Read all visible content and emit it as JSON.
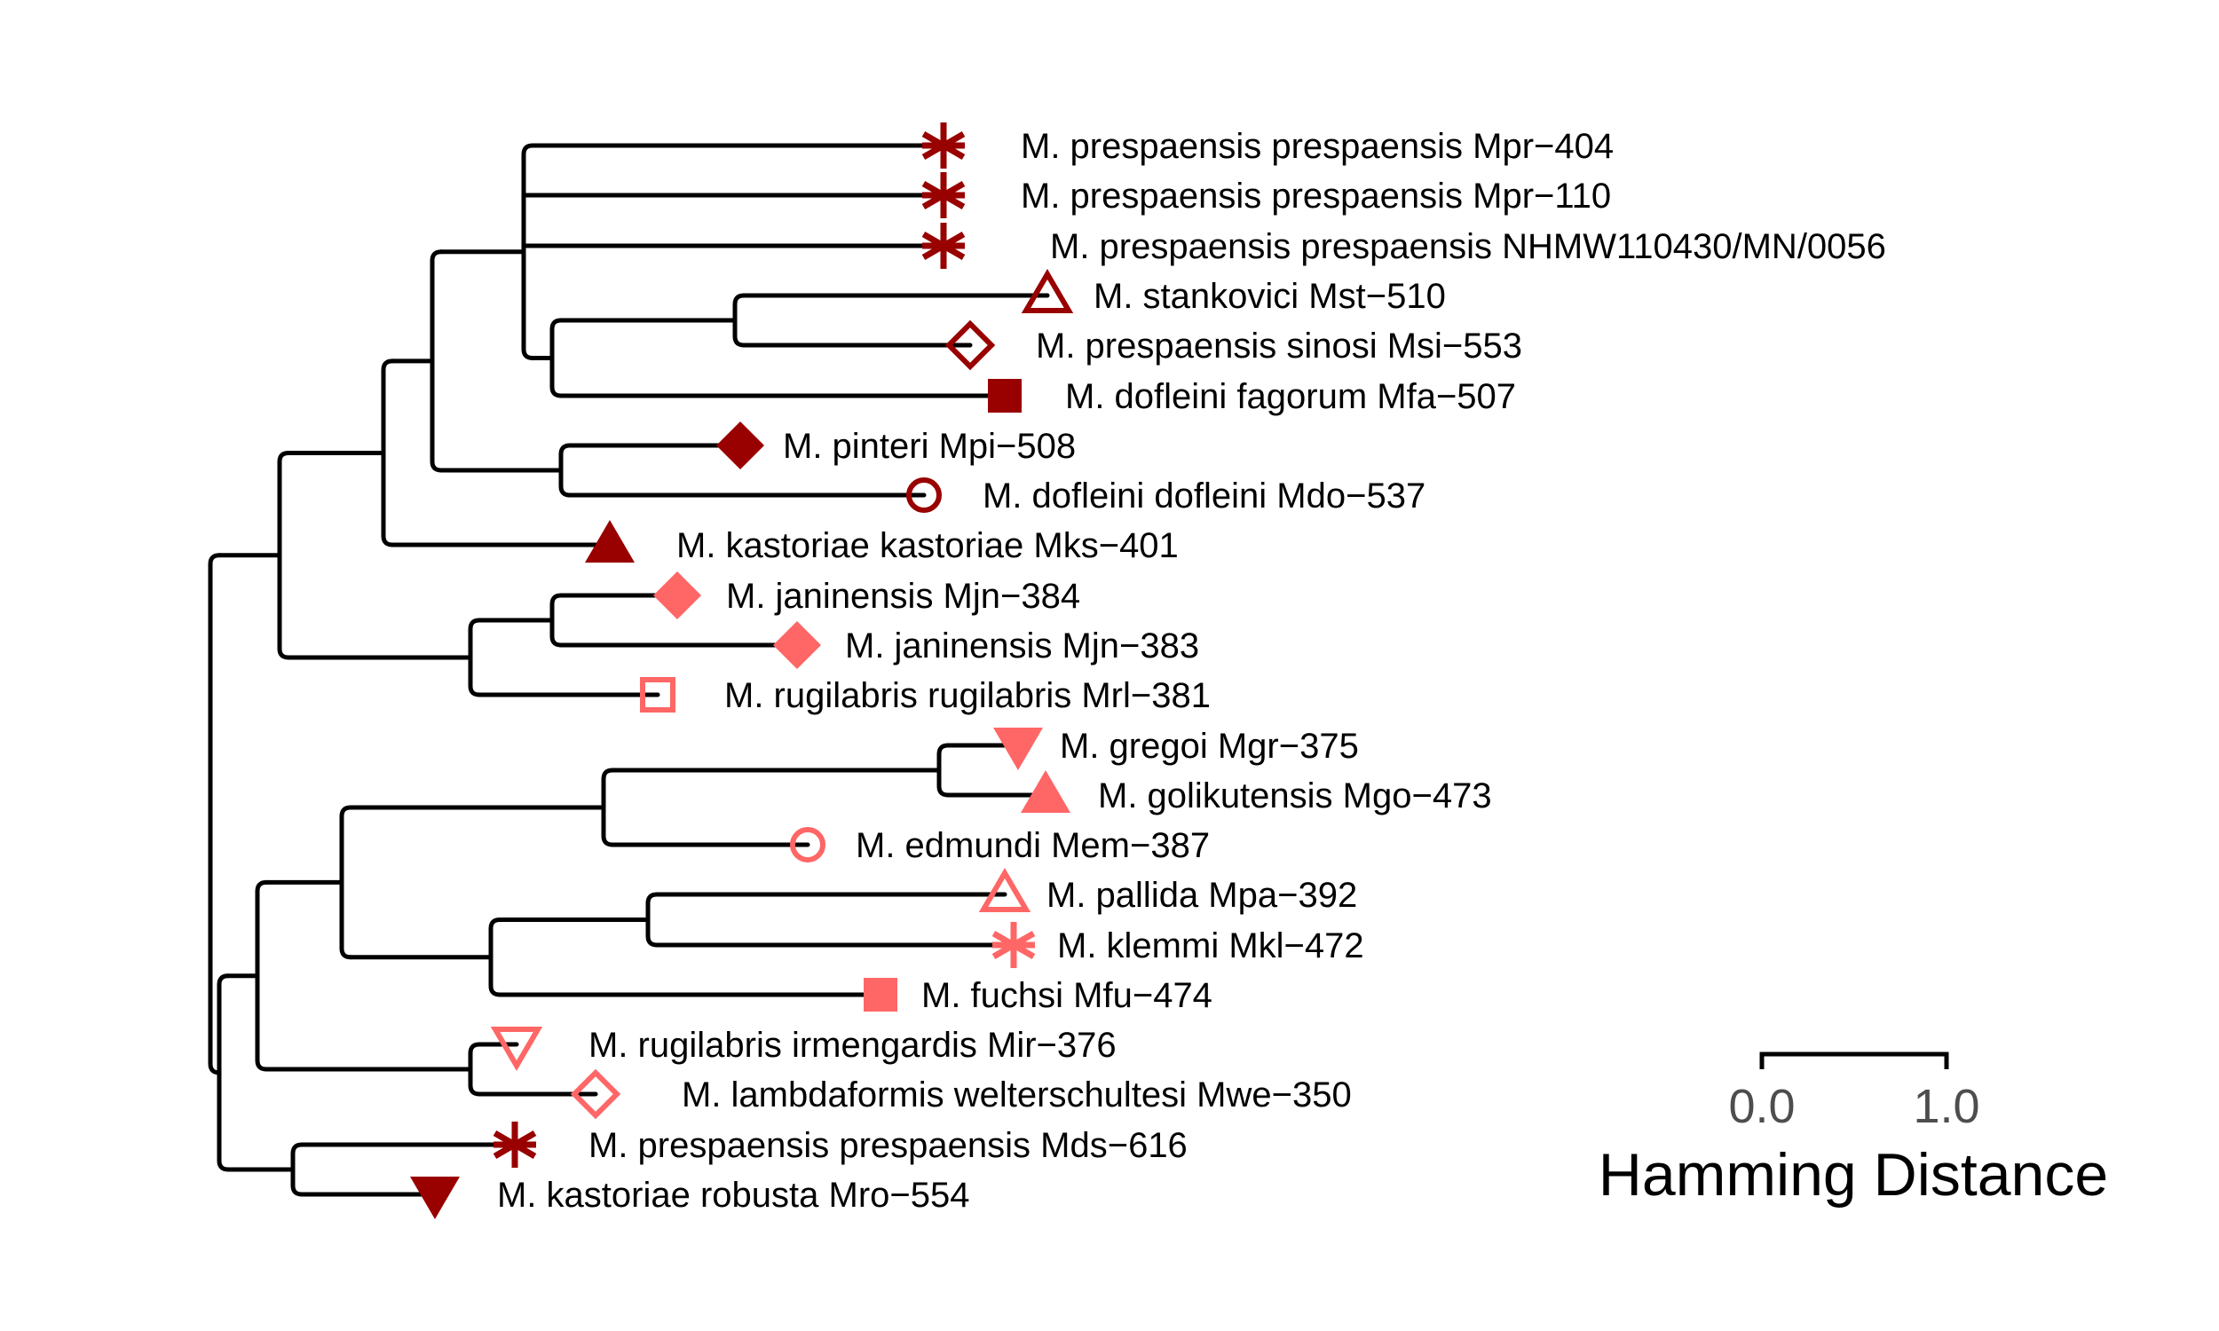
{
  "colors": {
    "dark": "#990000",
    "light": "#ff6666",
    "branch": "#000000"
  },
  "tips": [
    {
      "id": "mpr404",
      "label": "M. prespaensis prespaensis Mpr−404",
      "color": "dark",
      "marker": "asterisk"
    },
    {
      "id": "mpr110",
      "label": "M. prespaensis prespaensis Mpr−110",
      "color": "dark",
      "marker": "asterisk"
    },
    {
      "id": "nhmw",
      "label": "M. prespaensis prespaensis NHMW110430/MN/0056",
      "color": "dark",
      "marker": "asterisk"
    },
    {
      "id": "mst510",
      "label": "M. stankovici Mst−510",
      "color": "dark",
      "marker": "triangle-open"
    },
    {
      "id": "msi553",
      "label": "M. prespaensis sinosi Msi−553",
      "color": "dark",
      "marker": "diamond-open"
    },
    {
      "id": "mfa507",
      "label": "M. dofleini fagorum Mfa−507",
      "color": "dark",
      "marker": "square-filled"
    },
    {
      "id": "mpi508",
      "label": "M. pinteri Mpi−508",
      "color": "dark",
      "marker": "diamond-filled"
    },
    {
      "id": "mdo537",
      "label": "M. dofleini dofleini Mdo−537",
      "color": "dark",
      "marker": "circle-open"
    },
    {
      "id": "mks401",
      "label": "M. kastoriae kastoriae Mks−401",
      "color": "dark",
      "marker": "triangle-filled"
    },
    {
      "id": "mjn384",
      "label": "M. janinensis Mjn−384",
      "color": "light",
      "marker": "diamond-filled"
    },
    {
      "id": "mjn383",
      "label": "M. janinensis Mjn−383",
      "color": "light",
      "marker": "diamond-filled"
    },
    {
      "id": "mrl381",
      "label": "M. rugilabris rugilabris Mrl−381",
      "color": "light",
      "marker": "square-open"
    },
    {
      "id": "mgr375",
      "label": "M. gregoi Mgr−375",
      "color": "light",
      "marker": "triangle-down-filled"
    },
    {
      "id": "mgo473",
      "label": "M. golikutensis Mgo−473",
      "color": "light",
      "marker": "triangle-filled"
    },
    {
      "id": "mem387",
      "label": "M. edmundi Mem−387",
      "color": "light",
      "marker": "circle-open"
    },
    {
      "id": "mpa392",
      "label": "M. pallida Mpa−392",
      "color": "light",
      "marker": "triangle-open"
    },
    {
      "id": "mkl472",
      "label": "M. klemmi Mkl−472",
      "color": "light",
      "marker": "asterisk"
    },
    {
      "id": "mfu474",
      "label": "M. fuchsi Mfu−474",
      "color": "light",
      "marker": "square-filled"
    },
    {
      "id": "mir376",
      "label": "M. rugilabris irmengardis Mir−376",
      "color": "light",
      "marker": "triangle-down-open"
    },
    {
      "id": "mwe350",
      "label": "M. lambdaformis welterschultesi Mwe−350",
      "color": "light",
      "marker": "diamond-open"
    },
    {
      "id": "mds616",
      "label": "M. prespaensis prespaensis Mds−616",
      "color": "dark",
      "marker": "asterisk"
    },
    {
      "id": "mro554",
      "label": "M. kastoriae robusta Mro−554",
      "color": "dark",
      "marker": "triangle-down-filled"
    }
  ],
  "scale_bar": {
    "min_label": "0.0",
    "max_label": "1.0",
    "title": "Hamming Distance"
  }
}
